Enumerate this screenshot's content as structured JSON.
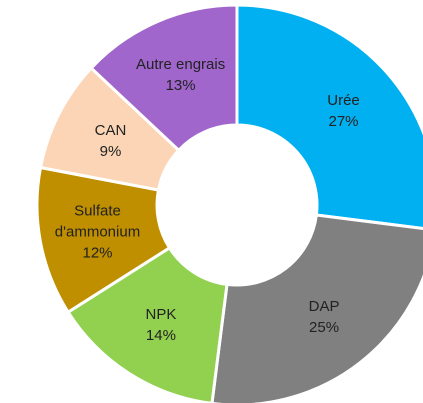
{
  "chart_data": {
    "type": "donut",
    "categories": [
      "Urée",
      "DAP",
      "NPK",
      "Sulfate d'ammonium",
      "CAN",
      "Autre engrais"
    ],
    "values": [
      27,
      25,
      14,
      12,
      9,
      13
    ],
    "value_labels": [
      "27%",
      "25%",
      "14%",
      "12%",
      "9%",
      "13%"
    ],
    "colors": [
      "#00b0f0",
      "#808080",
      "#92d050",
      "#bf8f00",
      "#fbd5b5",
      "#a066cc"
    ]
  }
}
